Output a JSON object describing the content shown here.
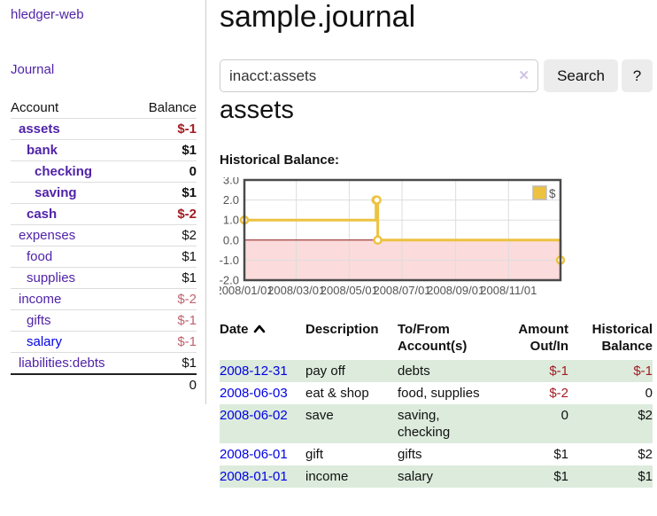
{
  "brand": "hledger-web",
  "sidebar": {
    "journal_link": "Journal",
    "accounts_table": {
      "account_header": "Account",
      "balance_header": "Balance",
      "rows": [
        {
          "account": "assets",
          "balance": "$-1",
          "depth": 1,
          "bold": true,
          "balance_color": "neg-strong",
          "link_color": "purple"
        },
        {
          "account": "bank",
          "balance": "$1",
          "depth": 2,
          "bold": true,
          "balance_color": "normal",
          "link_color": "purple"
        },
        {
          "account": "checking",
          "balance": "0",
          "depth": 3,
          "bold": true,
          "balance_color": "normal",
          "link_color": "purple"
        },
        {
          "account": "saving",
          "balance": "$1",
          "depth": 3,
          "bold": true,
          "balance_color": "normal",
          "link_color": "purple"
        },
        {
          "account": "cash",
          "balance": "$-2",
          "depth": 2,
          "bold": true,
          "balance_color": "neg-strong",
          "link_color": "purple"
        },
        {
          "account": "expenses",
          "balance": "$2",
          "depth": 1,
          "bold": false,
          "balance_color": "normal",
          "link_color": "purple"
        },
        {
          "account": "food",
          "balance": "$1",
          "depth": 2,
          "bold": false,
          "balance_color": "normal",
          "link_color": "purple"
        },
        {
          "account": "supplies",
          "balance": "$1",
          "depth": 2,
          "bold": false,
          "balance_color": "normal",
          "link_color": "purple"
        },
        {
          "account": "income",
          "balance": "$-2",
          "depth": 1,
          "bold": false,
          "balance_color": "neg-soft",
          "link_color": "purple"
        },
        {
          "account": "gifts",
          "balance": "$-1",
          "depth": 2,
          "bold": false,
          "balance_color": "neg-soft",
          "link_color": "purple"
        },
        {
          "account": "salary",
          "balance": "$-1",
          "depth": 2,
          "bold": false,
          "balance_color": "neg-soft",
          "link_color": "blue"
        },
        {
          "account": "liabilities:debts",
          "balance": "$1",
          "depth": 1,
          "bold": false,
          "balance_color": "normal",
          "link_color": "purple"
        }
      ],
      "total": "0"
    }
  },
  "header": {
    "title": "sample.journal"
  },
  "search": {
    "query": "inacct:assets",
    "clear_icon": "✕",
    "button_label": "Search",
    "help_label": "?"
  },
  "account_page": {
    "heading": "assets",
    "chart_label": "Historical Balance:"
  },
  "chart_data": {
    "type": "line",
    "step": true,
    "title": "Historical Balance",
    "series": [
      {
        "name": "$",
        "color": "#edc240",
        "points": [
          [
            "2008-01-01",
            1
          ],
          [
            "2008-06-01",
            2
          ],
          [
            "2008-06-02",
            2
          ],
          [
            "2008-06-03",
            0
          ],
          [
            "2008-12-31",
            -1
          ]
        ]
      }
    ],
    "x_range": [
      "2008-01-01",
      "2008-12-31"
    ],
    "ylim": [
      -2,
      3
    ],
    "x_ticks": [
      "2008/01/01",
      "2008/03/01",
      "2008/05/01",
      "2008/07/01",
      "2008/09/01",
      "2008/11/01"
    ],
    "y_ticks": [
      "3.0",
      "2.0",
      "1.0",
      "0.0",
      "-1.0",
      "-2.0"
    ],
    "legend": {
      "label": "$",
      "position": "top-right"
    },
    "grid": true,
    "axis_text_color": "#545454",
    "grid_color": "#dddddd",
    "border_color": "#4a4a4a",
    "zero_line_color": "#8b1010",
    "negative_region_color": "#fbdbdb"
  },
  "register": {
    "headers": {
      "date": "Date",
      "description": "Description",
      "accounts": "To/From Account(s)",
      "amount": "Amount Out/In",
      "balance": "Historical Balance"
    },
    "rows": [
      {
        "date": "2008-12-31",
        "description": "pay off",
        "accounts": "debts",
        "amount": "$-1",
        "balance": "$-1",
        "amount_negative": true,
        "balance_negative": true,
        "shade": true
      },
      {
        "date": "2008-06-03",
        "description": "eat & shop",
        "accounts": "food, supplies",
        "amount": "$-2",
        "balance": "0",
        "amount_negative": true,
        "balance_negative": false,
        "shade": false
      },
      {
        "date": "2008-06-02",
        "description": "save",
        "accounts": "saving, checking",
        "amount": "0",
        "balance": "$2",
        "amount_negative": false,
        "balance_negative": false,
        "shade": true
      },
      {
        "date": "2008-06-01",
        "description": "gift",
        "accounts": "gifts",
        "amount": "$1",
        "balance": "$2",
        "amount_negative": false,
        "balance_negative": false,
        "shade": false
      },
      {
        "date": "2008-01-01",
        "description": "income",
        "accounts": "salary",
        "amount": "$1",
        "balance": "$1",
        "amount_negative": false,
        "balance_negative": false,
        "shade": true
      }
    ]
  },
  "colors": {
    "link_purple": "#5023a8",
    "link_blue": "#0000e6",
    "negative_strong": "#a21c22",
    "negative_soft": "#c0636e",
    "row_shade_green": "#dcebdc",
    "chart_line": "#edc240"
  }
}
